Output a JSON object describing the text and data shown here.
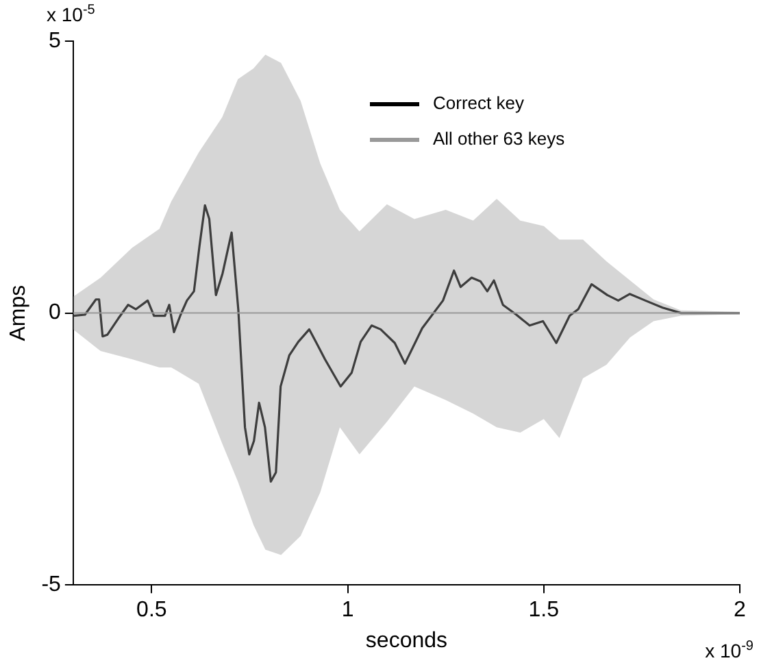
{
  "chart_data": {
    "type": "line",
    "xlabel": "seconds",
    "ylabel": "Amps",
    "annotations": [
      "x 10$^{-5}$",
      "x 10$^{-9}$"
    ],
    "xlim": [
      0.3,
      2
    ],
    "xticks": [
      0.5,
      1,
      1.5,
      2
    ],
    "ylim": [
      -5,
      5
    ],
    "yticks": [
      -5,
      0,
      5
    ],
    "grid": false,
    "legend": "top right",
    "marker": "none",
    "line_style": "solid",
    "series": [
      {
        "name": "All other 63 keys",
        "color": "#999999",
        "x": [
          0.3,
          0.37,
          0.45,
          0.52,
          0.55,
          0.62,
          0.68,
          0.72,
          0.76,
          0.79,
          0.83,
          0.88,
          0.93,
          0.98,
          1.03,
          1.1,
          1.17,
          1.25,
          1.32,
          1.38,
          1.44,
          1.5,
          1.54,
          1.6,
          1.66,
          1.72,
          1.78,
          1.85,
          2.0
        ],
        "values": [
          0,
          0,
          0,
          0,
          0,
          0,
          0,
          0,
          0,
          0,
          0,
          0,
          0,
          0,
          0,
          0,
          0,
          0,
          0,
          0,
          0,
          0,
          0,
          0,
          0,
          0,
          0,
          0,
          0
        ],
        "upper": [
          0.3,
          0.65,
          1.2,
          1.55,
          2.05,
          2.95,
          3.6,
          4.3,
          4.5,
          4.75,
          4.6,
          3.9,
          2.75,
          1.9,
          1.5,
          2.0,
          1.73,
          1.9,
          1.7,
          2.1,
          1.7,
          1.6,
          1.35,
          1.35,
          0.95,
          0.6,
          0.25,
          0.05,
          0.02
        ],
        "lower": [
          -0.3,
          -0.7,
          -0.85,
          -1.0,
          -1.0,
          -1.3,
          -2.4,
          -3.1,
          -3.9,
          -4.35,
          -4.45,
          -4.1,
          -3.3,
          -2.1,
          -2.6,
          -2.0,
          -1.35,
          -1.6,
          -1.85,
          -2.1,
          -2.2,
          -1.95,
          -2.3,
          -1.2,
          -0.95,
          -0.45,
          -0.15,
          -0.05,
          -0.02
        ]
      },
      {
        "name": "Correct key",
        "color": "#000000",
        "x": [
          0.3,
          0.33,
          0.358,
          0.366,
          0.375,
          0.387,
          0.415,
          0.44,
          0.46,
          0.49,
          0.506,
          0.534,
          0.545,
          0.557,
          0.574,
          0.59,
          0.608,
          0.622,
          0.636,
          0.647,
          0.664,
          0.681,
          0.704,
          0.721,
          0.738,
          0.749,
          0.761,
          0.774,
          0.789,
          0.804,
          0.817,
          0.829,
          0.851,
          0.874,
          0.902,
          0.919,
          0.942,
          0.982,
          1.01,
          1.033,
          1.061,
          1.084,
          1.12,
          1.146,
          1.19,
          1.243,
          1.271,
          1.288,
          1.316,
          1.339,
          1.356,
          1.373,
          1.396,
          1.43,
          1.464,
          1.498,
          1.532,
          1.566,
          1.588,
          1.622,
          1.662,
          1.69,
          1.719,
          1.759,
          1.803,
          1.85,
          2.0
        ],
        "values": [
          -0.05,
          -0.03,
          0.25,
          0.25,
          -0.43,
          -0.4,
          -0.1,
          0.15,
          0.07,
          0.23,
          -0.05,
          -0.05,
          0.15,
          -0.35,
          -0.03,
          0.23,
          0.4,
          1.23,
          1.98,
          1.73,
          0.33,
          0.73,
          1.48,
          0.07,
          -2.1,
          -2.6,
          -2.35,
          -1.65,
          -2.1,
          -3.1,
          -2.93,
          -1.35,
          -0.78,
          -0.53,
          -0.3,
          -0.53,
          -0.85,
          -1.35,
          -1.1,
          -0.53,
          -0.23,
          -0.3,
          -0.55,
          -0.93,
          -0.28,
          0.23,
          0.78,
          0.48,
          0.65,
          0.58,
          0.4,
          0.6,
          0.15,
          -0.03,
          -0.23,
          -0.15,
          -0.55,
          -0.05,
          0.07,
          0.53,
          0.33,
          0.23,
          0.35,
          0.23,
          0.1,
          0,
          0
        ]
      }
    ]
  }
}
